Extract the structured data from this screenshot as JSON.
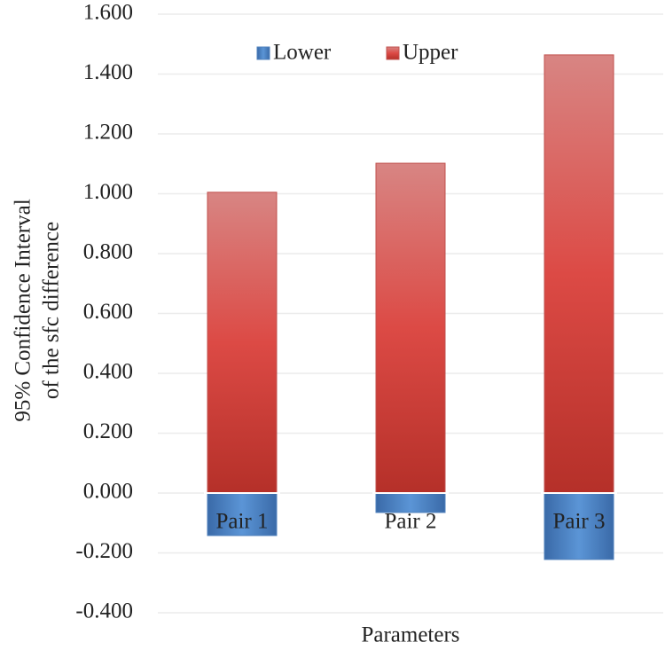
{
  "chart_data": {
    "type": "bar",
    "stacked": true,
    "ylabel": [
      "95% Confidence Interval",
      "of the sfc difference"
    ],
    "xlabel": "Parameters",
    "categories": [
      "Pair 1",
      "Pair 2",
      "Pair 3"
    ],
    "series": [
      {
        "name": "Lower",
        "color": "#4f81bd",
        "values": [
          -0.142,
          -0.065,
          -0.222
        ]
      },
      {
        "name": "Upper",
        "color": "#c0504d",
        "values": [
          1.005,
          1.102,
          1.464
        ]
      }
    ],
    "ylim": [
      -0.4,
      1.6
    ],
    "yticks": [
      {
        "value": -0.4,
        "label": "-0.400"
      },
      {
        "value": -0.2,
        "label": "-0.200"
      },
      {
        "value": 0,
        "label": "0.000"
      },
      {
        "value": 0.2,
        "label": "0.200"
      },
      {
        "value": 0.4,
        "label": "0.400"
      },
      {
        "value": 0.6,
        "label": "0.600"
      },
      {
        "value": 0.8,
        "label": "0.800"
      },
      {
        "value": 1.0,
        "label": "1.000"
      },
      {
        "value": 1.2,
        "label": "1.200"
      },
      {
        "value": 1.4,
        "label": "1.400"
      },
      {
        "value": 1.6,
        "label": "1.600"
      }
    ],
    "grid": true,
    "legend": "top"
  }
}
